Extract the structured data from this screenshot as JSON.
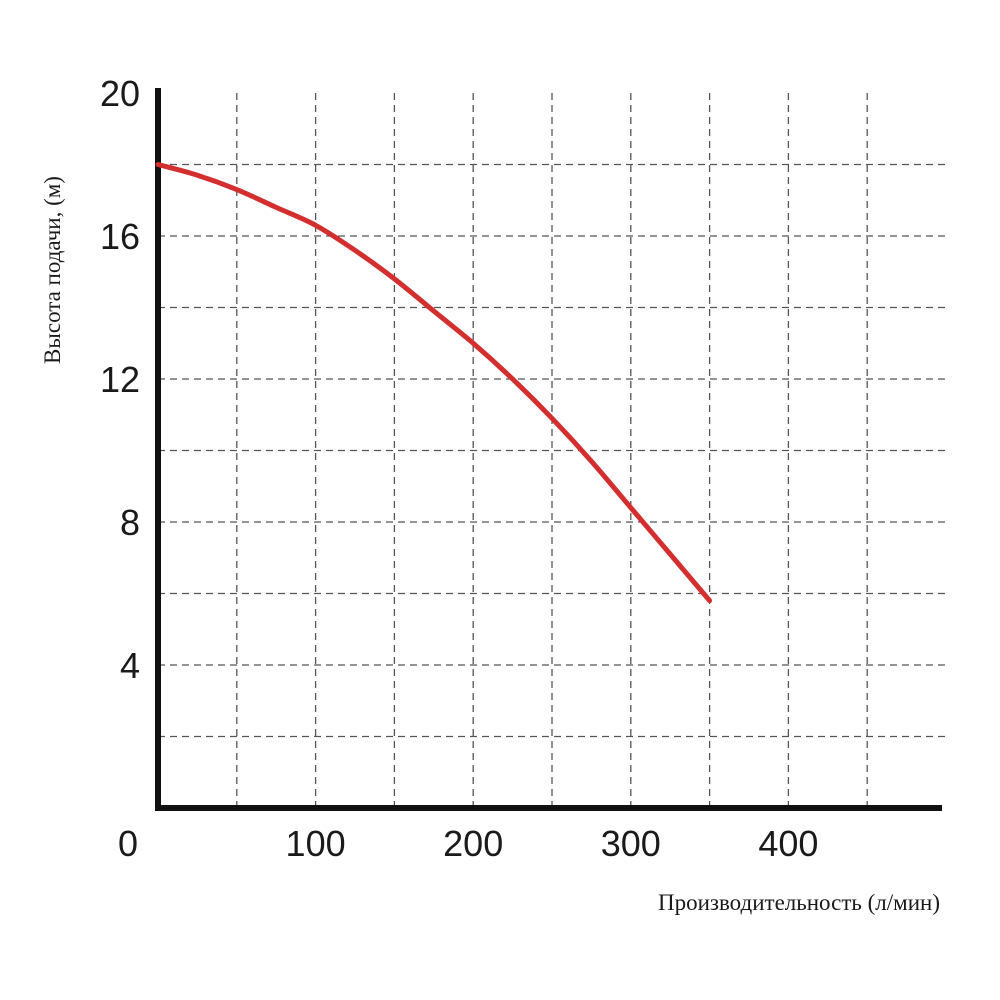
{
  "chart_data": {
    "type": "line",
    "xlabel": "Производительность (л/мин)",
    "ylabel": "Высота подачи, (м)",
    "xlim": [
      0,
      500
    ],
    "ylim": [
      0,
      20
    ],
    "x_ticks": [
      100,
      200,
      300,
      400
    ],
    "y_ticks": [
      4,
      8,
      12,
      16,
      20
    ],
    "origin_label": "0",
    "grid": true,
    "grid_x_step": 50,
    "grid_y_step": 2,
    "series": [
      {
        "color": "#d32f2f",
        "x": [
          0,
          25,
          50,
          75,
          100,
          125,
          150,
          175,
          200,
          225,
          250,
          275,
          300,
          325,
          350
        ],
        "y": [
          18.0,
          17.7,
          17.3,
          16.8,
          16.3,
          15.6,
          14.8,
          13.9,
          13.0,
          12.0,
          10.9,
          9.7,
          8.4,
          7.1,
          5.8
        ]
      }
    ]
  }
}
